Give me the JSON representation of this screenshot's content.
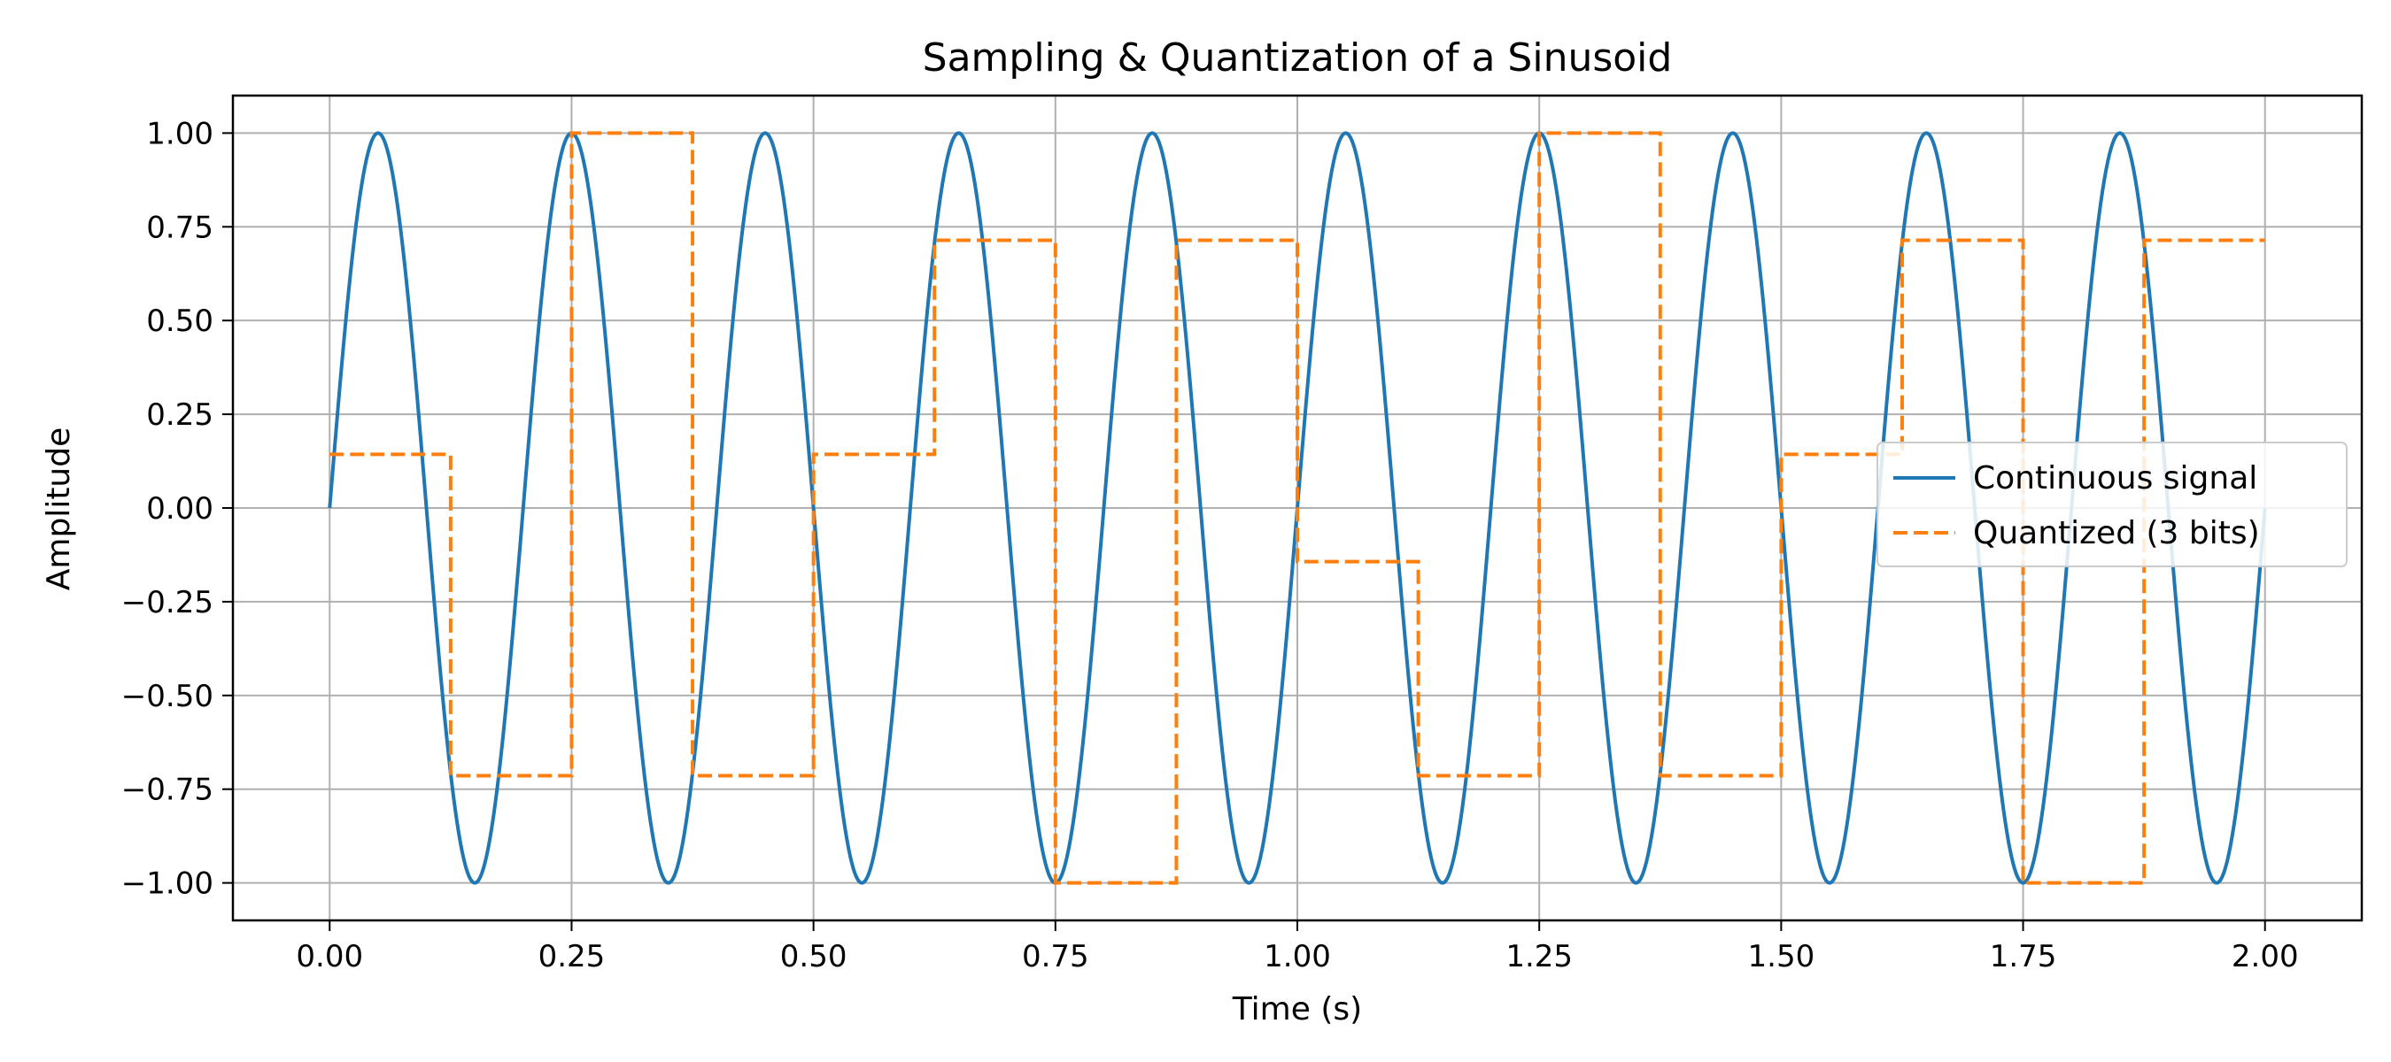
{
  "chart_data": {
    "type": "line",
    "title": "Sampling & Quantization of a Sinusoid",
    "xlabel": "Time (s)",
    "ylabel": "Amplitude",
    "xlim": [
      -0.1,
      2.1
    ],
    "ylim": [
      -1.1,
      1.1
    ],
    "xticks": [
      0.0,
      0.25,
      0.5,
      0.75,
      1.0,
      1.25,
      1.5,
      1.75,
      2.0
    ],
    "xtick_labels": [
      "0.00",
      "0.25",
      "0.50",
      "0.75",
      "1.00",
      "1.25",
      "1.50",
      "1.75",
      "2.00"
    ],
    "yticks": [
      1.0,
      0.75,
      0.5,
      0.25,
      0.0,
      -0.25,
      -0.5,
      -0.75,
      -1.0
    ],
    "ytick_labels": [
      "1.00",
      "0.75",
      "0.50",
      "0.25",
      "0.00",
      "−0.25",
      "−0.50",
      "−0.75",
      "−1.00"
    ],
    "grid": true,
    "legend_position": "center-right",
    "series": [
      {
        "name": "Continuous signal",
        "style": "solid",
        "color": "#1f77b4",
        "function": "sin(2*pi*f*t)",
        "frequency_hz": 5,
        "amplitude": 1.0,
        "t_range": [
          0.0,
          2.0
        ]
      },
      {
        "name": "Quantized (3 bits)",
        "style": "dashed-step",
        "color": "#ff7f0e",
        "x": [
          0.0,
          0.125,
          0.25,
          0.375,
          0.5,
          0.625,
          0.75,
          0.875,
          1.0,
          1.125,
          1.25,
          1.375,
          1.5,
          1.625,
          1.75,
          1.875
        ],
        "values": [
          0.143,
          -0.714,
          1.0,
          -0.714,
          0.143,
          0.714,
          -1.0,
          0.714,
          -0.143,
          -0.714,
          1.0,
          -0.714,
          0.143,
          0.714,
          -1.0,
          0.714
        ],
        "x_end": 2.0
      }
    ]
  }
}
